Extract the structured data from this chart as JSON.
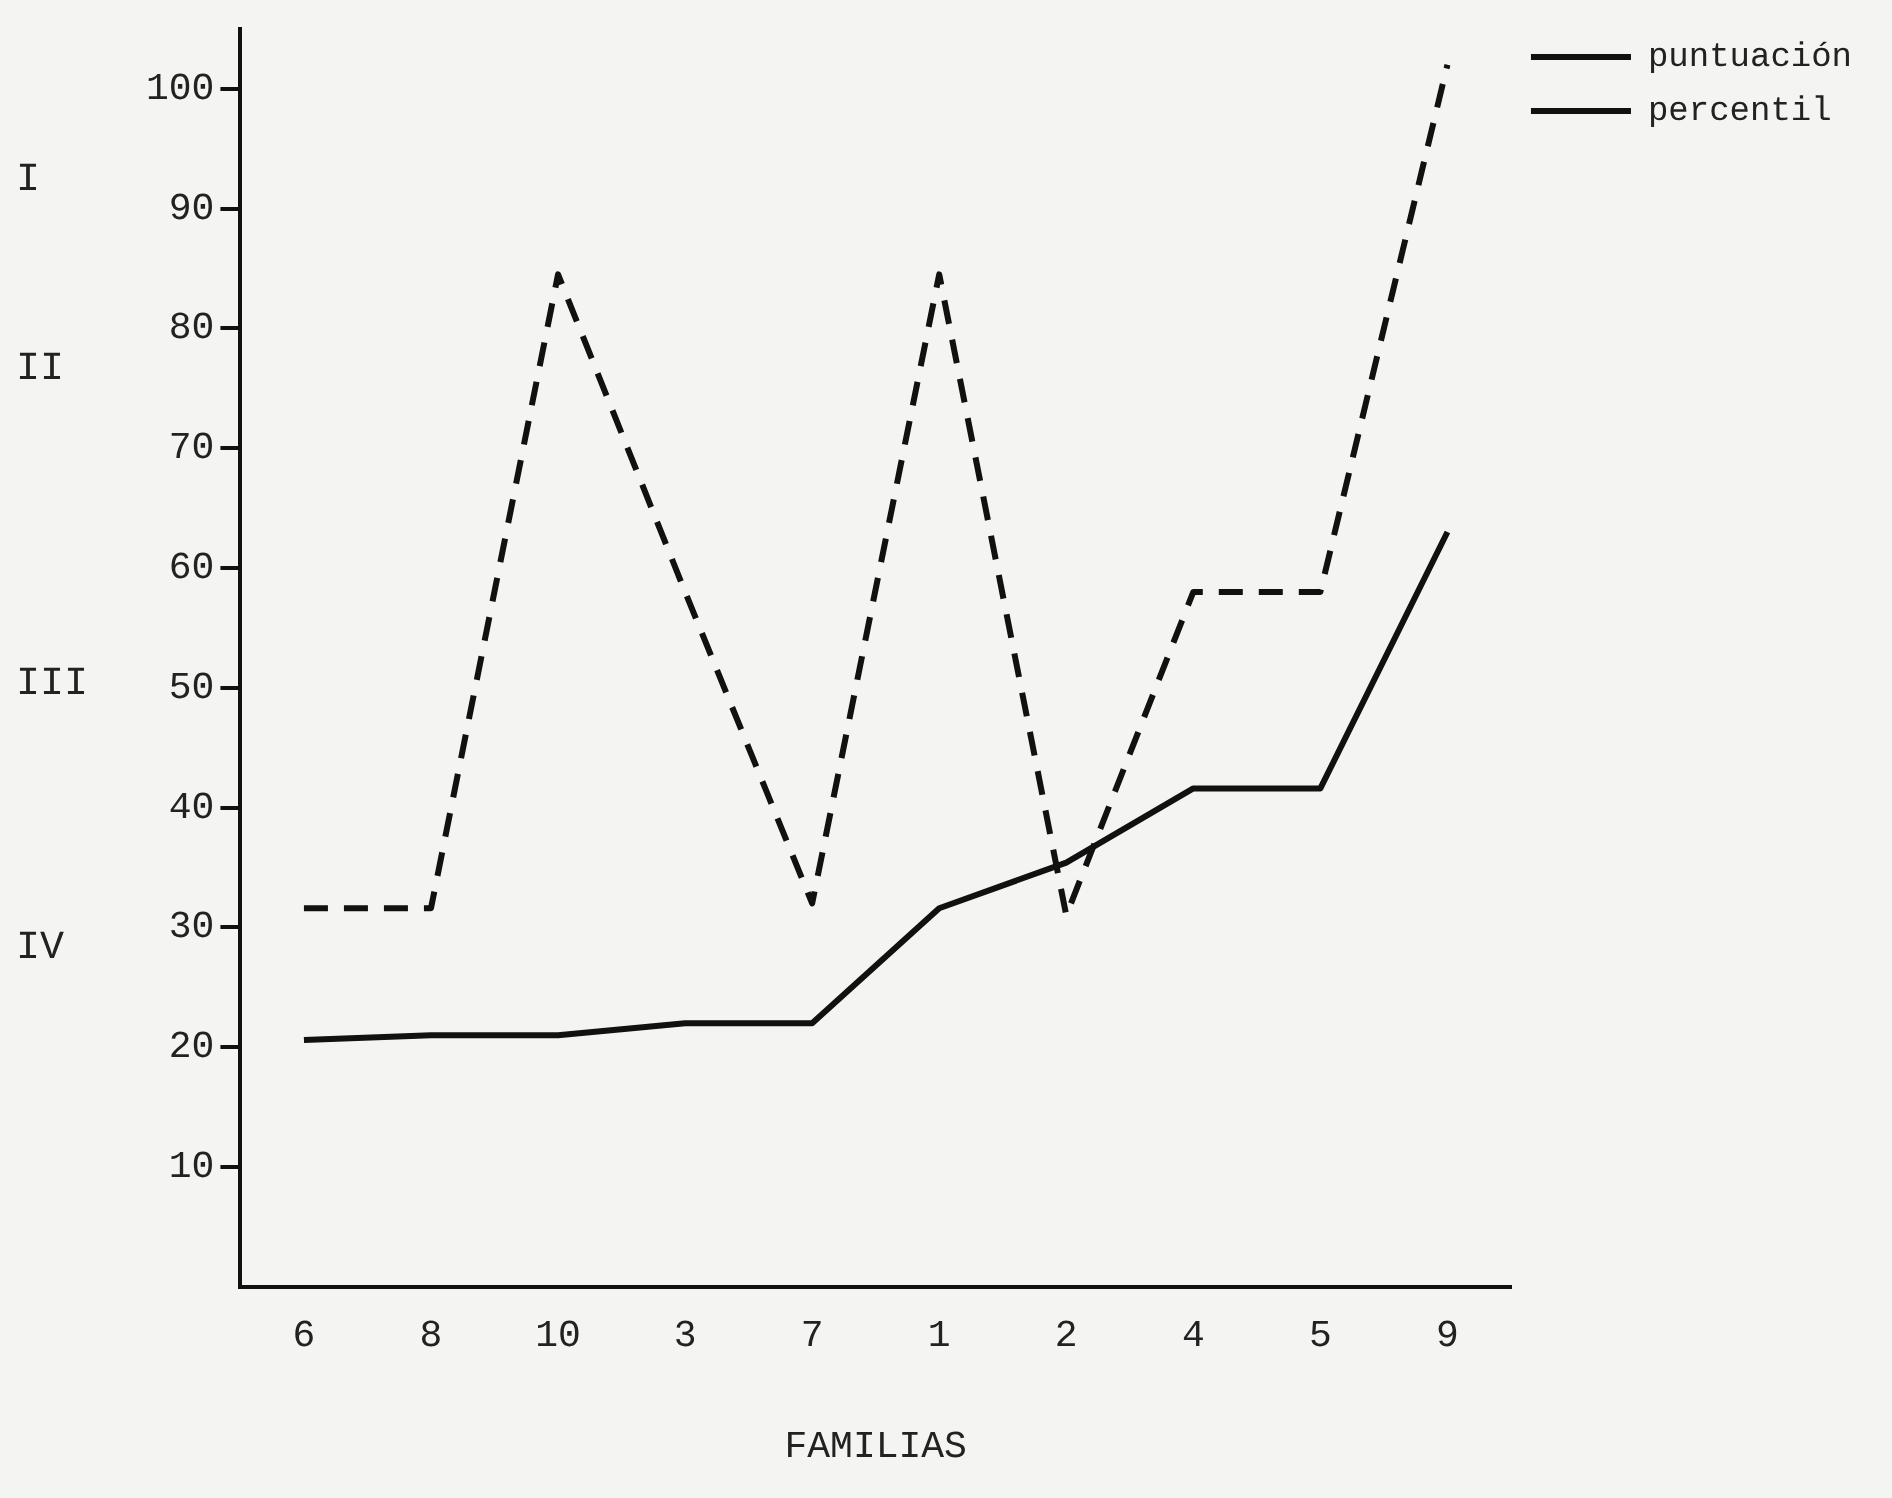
{
  "chart_data": {
    "type": "line",
    "xlabel": "FAMILIAS",
    "categories": [
      "6",
      "8",
      "10",
      "3",
      "7",
      "1",
      "2",
      "4",
      "5",
      "9"
    ],
    "series": [
      {
        "name": "puntuación",
        "color": "#111111",
        "line_style": "solid",
        "values": [
          20.6,
          21,
          21,
          22,
          22,
          31.6,
          35.4,
          41.6,
          41.6,
          63
        ]
      },
      {
        "name": "percentil",
        "color": "#111111",
        "line_style": "dashed",
        "values": [
          31.6,
          31.6,
          84.5,
          58,
          32,
          84.5,
          31,
          58,
          58,
          102
        ]
      }
    ],
    "ylim": [
      0,
      105
    ],
    "yticks": [
      10,
      20,
      30,
      40,
      50,
      60,
      70,
      80,
      90,
      100
    ],
    "annotations": [
      "I",
      "II",
      "III",
      "IV"
    ],
    "grid": false,
    "legend": "top right",
    "marker": "none"
  }
}
